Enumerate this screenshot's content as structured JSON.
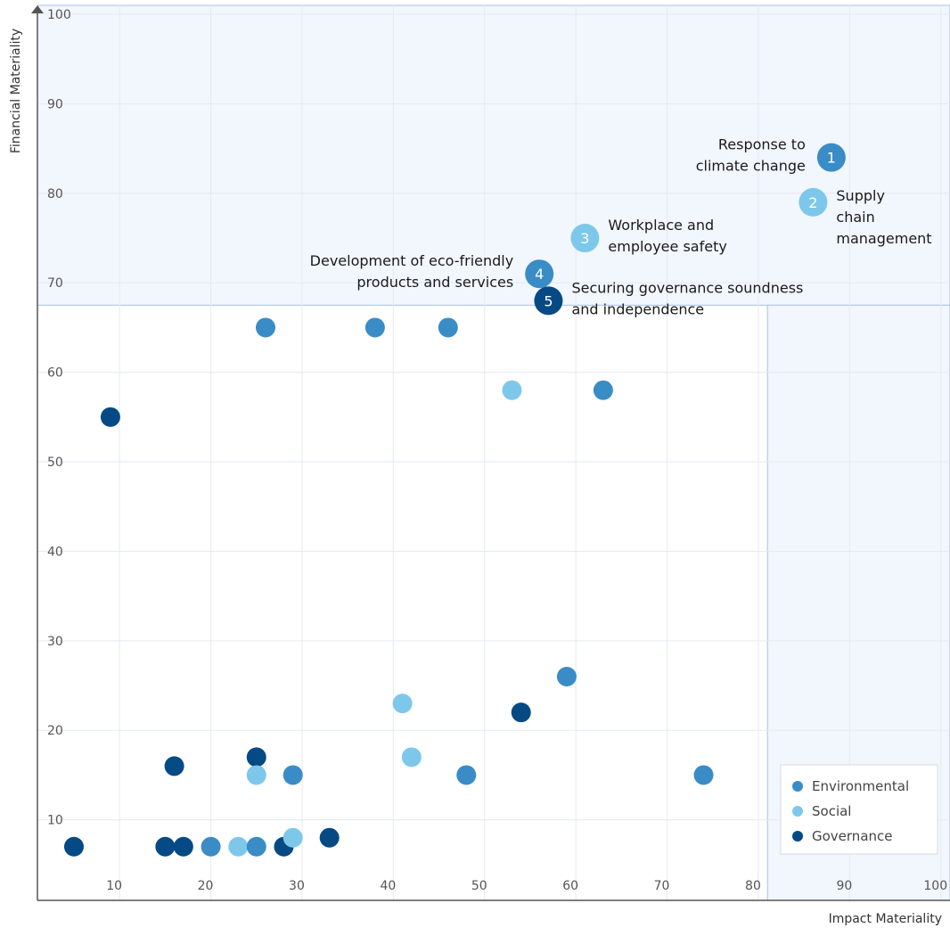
{
  "chart_data": {
    "type": "scatter",
    "xlabel": "Impact Materiality",
    "ylabel": "Financial Materiality",
    "xlim": [
      1,
      101
    ],
    "ylim": [
      1,
      101
    ],
    "x_ticks": [
      10,
      20,
      30,
      40,
      50,
      60,
      70,
      80,
      90,
      100
    ],
    "y_ticks": [
      10,
      20,
      30,
      40,
      50,
      60,
      70,
      80,
      90,
      100
    ],
    "grid": true,
    "legend_position": "bottom-right",
    "colors": {
      "Environmental": "#3a8cc6",
      "Social": "#7dc8ea",
      "Governance": "#054a84"
    },
    "legend": [
      {
        "name": "Environmental",
        "category": "Environmental"
      },
      {
        "name": "Social",
        "category": "Social"
      },
      {
        "name": "Governance",
        "category": "Governance"
      }
    ],
    "highlighted": [
      {
        "rank": "1",
        "x": 88,
        "y": 84,
        "category": "Environmental",
        "label": [
          "Response to",
          "climate change"
        ],
        "label_side": "left"
      },
      {
        "rank": "2",
        "x": 86,
        "y": 79,
        "category": "Social",
        "label": [
          "Supply",
          "chain",
          "management"
        ],
        "label_side": "right"
      },
      {
        "rank": "3",
        "x": 61,
        "y": 75,
        "category": "Social",
        "label": [
          "Workplace and",
          "employee safety"
        ],
        "label_side": "right"
      },
      {
        "rank": "4",
        "x": 56,
        "y": 71,
        "category": "Environmental",
        "label": [
          "Development of eco-friendly",
          "products and services"
        ],
        "label_side": "left"
      },
      {
        "rank": "5",
        "x": 57,
        "y": 68,
        "category": "Governance",
        "label": [
          "Securing governance soundness",
          "and independence"
        ],
        "label_side": "right"
      }
    ],
    "points": [
      {
        "x": 26,
        "y": 65,
        "category": "Environmental"
      },
      {
        "x": 38,
        "y": 65,
        "category": "Environmental"
      },
      {
        "x": 46,
        "y": 65,
        "category": "Environmental"
      },
      {
        "x": 53,
        "y": 58,
        "category": "Social"
      },
      {
        "x": 63,
        "y": 58,
        "category": "Environmental"
      },
      {
        "x": 9,
        "y": 55,
        "category": "Governance"
      },
      {
        "x": 59,
        "y": 26,
        "category": "Environmental"
      },
      {
        "x": 41,
        "y": 23,
        "category": "Social"
      },
      {
        "x": 54,
        "y": 22,
        "category": "Governance"
      },
      {
        "x": 25,
        "y": 17,
        "category": "Governance"
      },
      {
        "x": 42,
        "y": 17,
        "category": "Social"
      },
      {
        "x": 16,
        "y": 16,
        "category": "Governance"
      },
      {
        "x": 25,
        "y": 15,
        "category": "Social"
      },
      {
        "x": 29,
        "y": 15,
        "category": "Environmental"
      },
      {
        "x": 48,
        "y": 15,
        "category": "Environmental"
      },
      {
        "x": 74,
        "y": 15,
        "category": "Environmental"
      },
      {
        "x": 5,
        "y": 7,
        "category": "Governance"
      },
      {
        "x": 15,
        "y": 7,
        "category": "Governance"
      },
      {
        "x": 17,
        "y": 7,
        "category": "Governance"
      },
      {
        "x": 20,
        "y": 7,
        "category": "Environmental"
      },
      {
        "x": 23,
        "y": 7,
        "category": "Social"
      },
      {
        "x": 25,
        "y": 7,
        "category": "Environmental"
      },
      {
        "x": 28,
        "y": 7,
        "category": "Governance"
      },
      {
        "x": 29,
        "y": 8,
        "category": "Social"
      },
      {
        "x": 33,
        "y": 8,
        "category": "Governance"
      }
    ]
  }
}
